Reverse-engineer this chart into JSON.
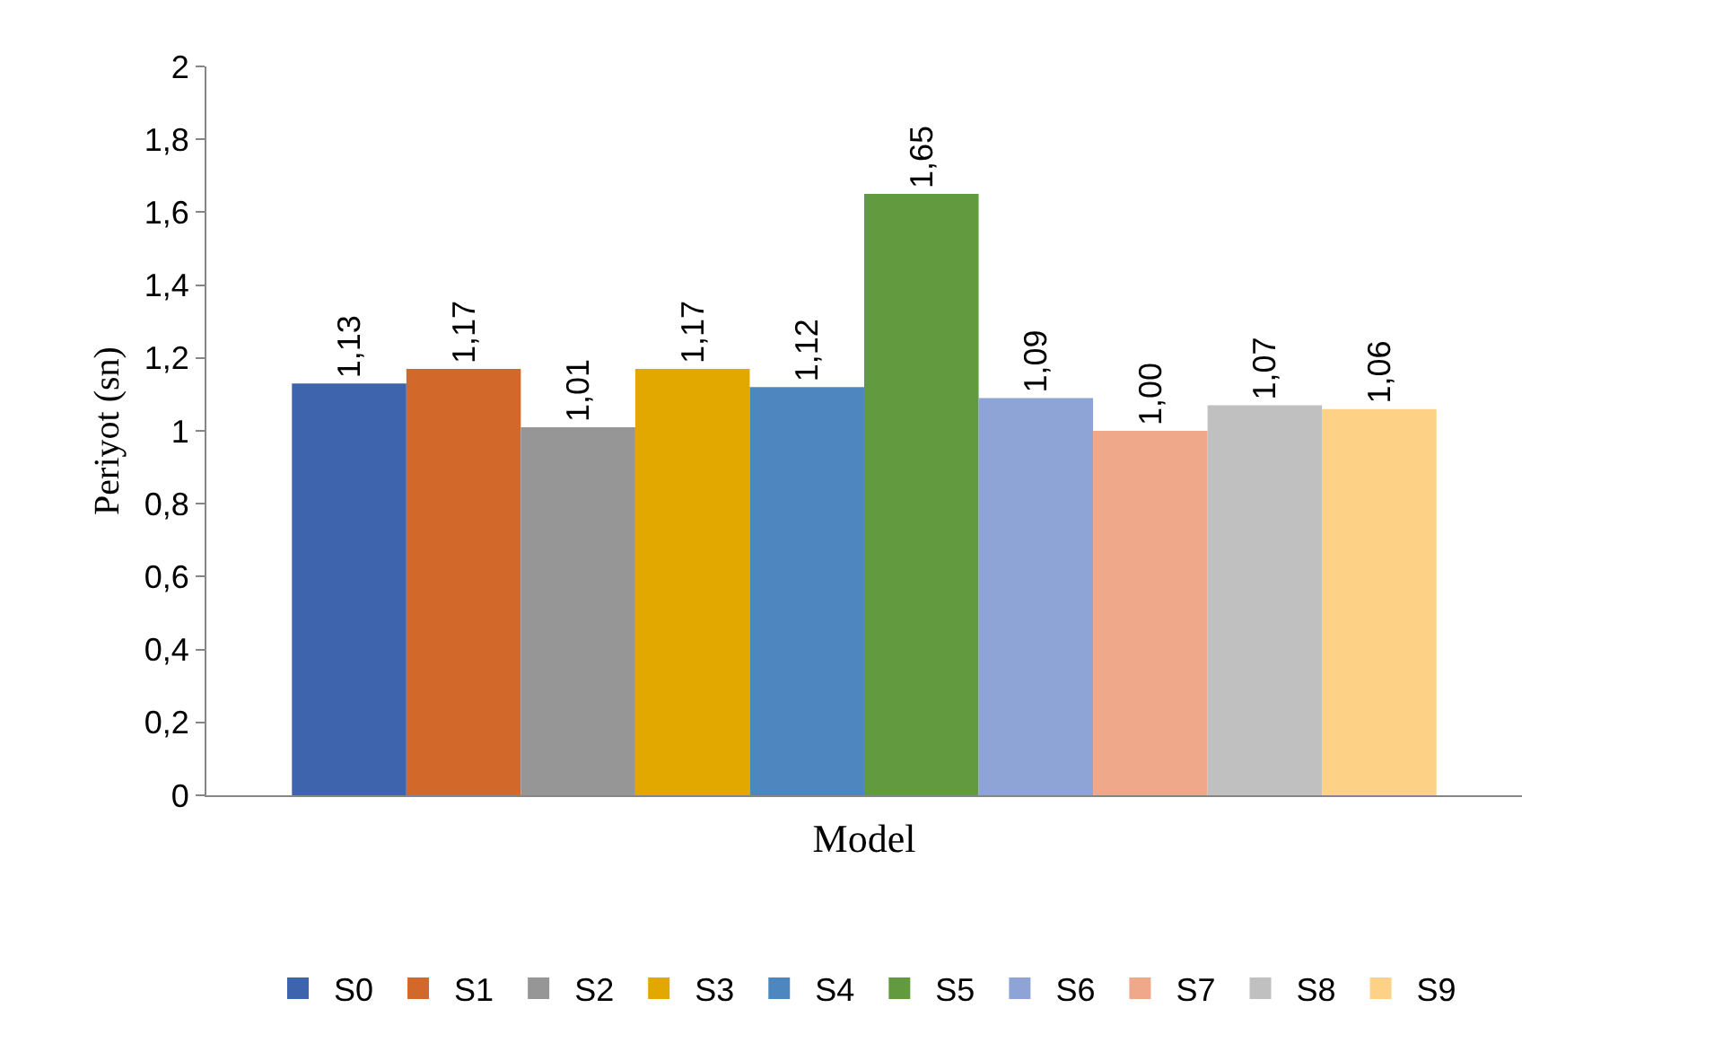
{
  "chart_data": {
    "type": "bar",
    "xlabel": "Model",
    "ylabel": "Periyot (sn)",
    "categories": [
      null
    ],
    "ylim": [
      0,
      2
    ],
    "yticks": [
      0,
      {
        "value": 0.2,
        "label": "0,2"
      },
      {
        "value": 0.4,
        "label": "0,4"
      },
      {
        "value": 0.6,
        "label": "0,6"
      },
      {
        "value": 0.8,
        "label": "0,8"
      },
      1,
      {
        "value": 1.2,
        "label": "1,2"
      },
      {
        "value": 1.4,
        "label": "1,4"
      },
      {
        "value": 1.6,
        "label": "1,6"
      },
      {
        "value": 1.8,
        "label": "1,8"
      },
      2
    ],
    "grid": false,
    "legend": "bottom",
    "series": [
      {
        "name": "S0",
        "color": "#3f64ae",
        "values": [
          1.13
        ],
        "value_labels": [
          "1,13"
        ]
      },
      {
        "name": "S1",
        "color": "#d2692b",
        "values": [
          1.17
        ],
        "value_labels": [
          "1,17"
        ]
      },
      {
        "name": "S2",
        "color": "#969696",
        "values": [
          1.01
        ],
        "value_labels": [
          "1,01"
        ]
      },
      {
        "name": "S3",
        "color": "#e2a800",
        "values": [
          1.17
        ],
        "value_labels": [
          "1,17"
        ]
      },
      {
        "name": "S4",
        "color": "#4e87bf",
        "values": [
          1.12
        ],
        "value_labels": [
          "1,12"
        ]
      },
      {
        "name": "S5",
        "color": "#629b3f",
        "values": [
          1.65
        ],
        "value_labels": [
          "1,65"
        ]
      },
      {
        "name": "S6",
        "color": "#8fa4d6",
        "values": [
          1.09
        ],
        "value_labels": [
          "1,09"
        ]
      },
      {
        "name": "S7",
        "color": "#f0a88a",
        "values": [
          1.0
        ],
        "value_labels": [
          "1,00"
        ]
      },
      {
        "name": "S8",
        "color": "#c0c0c0",
        "values": [
          1.07
        ],
        "value_labels": [
          "1,07"
        ]
      },
      {
        "name": "S9",
        "color": "#fdd286",
        "values": [
          1.06
        ],
        "value_labels": [
          "1,06"
        ]
      }
    ]
  }
}
